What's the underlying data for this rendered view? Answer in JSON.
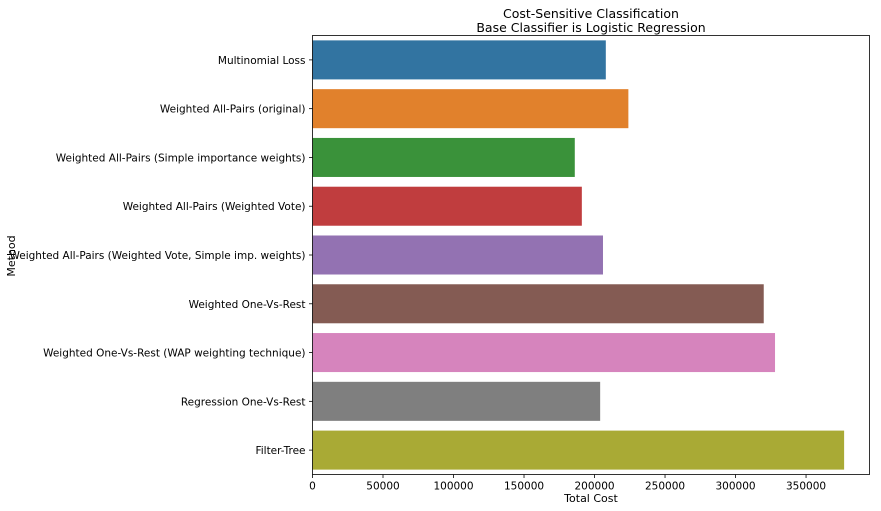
{
  "chart_data": {
    "type": "bar",
    "orientation": "horizontal",
    "title": "Cost-Sensitive Classification",
    "subtitle": "Base Classifier is Logistic Regression",
    "xlabel": "Total Cost",
    "ylabel": "Method",
    "xlim": [
      0,
      395000
    ],
    "xticks": [
      0,
      50000,
      100000,
      150000,
      200000,
      250000,
      300000,
      350000
    ],
    "grid": false,
    "categories": [
      "Multinomial Loss",
      "Weighted All-Pairs (original)",
      "Weighted All-Pairs (Simple importance weights)",
      "Weighted All-Pairs (Weighted Vote)",
      "Weighted All-Pairs (Weighted Vote, Simple imp. weights)",
      "Weighted One-Vs-Rest",
      "Weighted One-Vs-Rest (WAP weighting technique)",
      "Regression One-Vs-Rest",
      "Filter-Tree"
    ],
    "values": [
      208000,
      224000,
      186000,
      191000,
      206000,
      320000,
      328000,
      204000,
      377000
    ],
    "colors": [
      "#3274a1",
      "#e1812c",
      "#3a923a",
      "#c03d3e",
      "#9372b2",
      "#845b53",
      "#d684bd",
      "#7f7f7f",
      "#a9aa35"
    ]
  }
}
